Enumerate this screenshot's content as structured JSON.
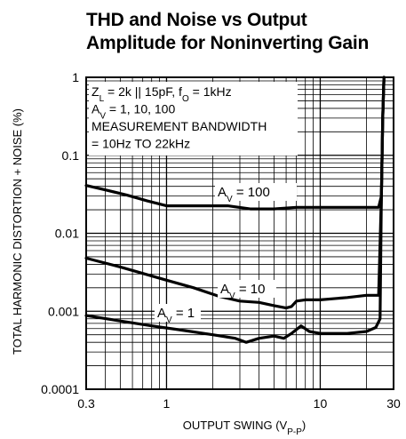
{
  "chart_data": {
    "type": "line",
    "title_lines": [
      "THD and Noise vs Output",
      "Amplitude for Noninverting Gain"
    ],
    "xlabel": {
      "main": "OUTPUT SWING (V",
      "sub": "P-P",
      "close": ")"
    },
    "ylabel": "TOTAL HARMONIC DISTORTION + NOISE (%)",
    "x_scale": "log",
    "y_scale": "log",
    "xlim": [
      0.3,
      30
    ],
    "ylim": [
      0.0001,
      1
    ],
    "grid": true,
    "x_ticks": [
      {
        "value": 0.3,
        "label": "0.3"
      },
      {
        "value": 1,
        "label": "1"
      },
      {
        "value": 10,
        "label": "10"
      },
      {
        "value": 30,
        "label": "30"
      }
    ],
    "y_ticks": [
      {
        "value": 1,
        "label": "1"
      },
      {
        "value": 0.1,
        "label": "0.1"
      },
      {
        "value": 0.01,
        "label": "0.01"
      },
      {
        "value": 0.001,
        "label": "0.001"
      },
      {
        "value": 0.0001,
        "label": "0.0001"
      }
    ],
    "conditions": [
      [
        {
          "t": "Z"
        },
        {
          "t": "L",
          "sub": true
        },
        {
          "t": " = 2k || 15pF, f"
        },
        {
          "t": "O",
          "sub": true
        },
        {
          "t": " = 1kHz"
        }
      ],
      [
        {
          "t": "A"
        },
        {
          "t": "V",
          "sub": true
        },
        {
          "t": " = 1, 10, 100"
        }
      ],
      [
        {
          "t": "MEASUREMENT BANDWIDTH"
        }
      ],
      [
        {
          "t": "= 10Hz TO 22kHz"
        }
      ]
    ],
    "series": [
      {
        "name": "AV = 100",
        "label": {
          "main": "A",
          "sub": "V",
          "rest": " = 100"
        },
        "points": [
          [
            0.3,
            0.041
          ],
          [
            0.4,
            0.036
          ],
          [
            0.55,
            0.031
          ],
          [
            0.75,
            0.026
          ],
          [
            1.0,
            0.0225
          ],
          [
            1.5,
            0.0225
          ],
          [
            2.5,
            0.0225
          ],
          [
            3.5,
            0.0205
          ],
          [
            5,
            0.0205
          ],
          [
            7,
            0.0215
          ],
          [
            10,
            0.0215
          ],
          [
            20,
            0.0215
          ],
          [
            24,
            0.0215
          ],
          [
            25,
            0.03
          ],
          [
            25.5,
            0.3
          ],
          [
            26,
            1.0
          ]
        ]
      },
      {
        "name": "AV = 10",
        "label": {
          "main": "A",
          "sub": "V",
          "rest": " = 10"
        },
        "points": [
          [
            0.3,
            0.0048
          ],
          [
            0.5,
            0.0037
          ],
          [
            1.0,
            0.0025
          ],
          [
            1.5,
            0.002
          ],
          [
            2.2,
            0.00155
          ],
          [
            3,
            0.00135
          ],
          [
            4,
            0.0013
          ],
          [
            5,
            0.00118
          ],
          [
            6,
            0.0011
          ],
          [
            6.5,
            0.00115
          ],
          [
            7,
            0.00135
          ],
          [
            8,
            0.0014
          ],
          [
            10,
            0.0014
          ],
          [
            15,
            0.0015
          ],
          [
            20,
            0.0016
          ],
          [
            24,
            0.0016
          ],
          [
            25,
            0.03
          ],
          [
            25.5,
            0.3
          ],
          [
            26,
            1.0
          ]
        ]
      },
      {
        "name": "AV = 1",
        "label": {
          "main": "A",
          "sub": "V",
          "rest": " = 1"
        },
        "points": [
          [
            0.3,
            0.00088
          ],
          [
            0.5,
            0.00075
          ],
          [
            0.8,
            0.00065
          ],
          [
            1.2,
            0.00058
          ],
          [
            2,
            0.0005
          ],
          [
            2.8,
            0.00045
          ],
          [
            3.3,
            0.0004
          ],
          [
            4,
            0.00045
          ],
          [
            5,
            0.00048
          ],
          [
            5.8,
            0.00045
          ],
          [
            6.5,
            0.00052
          ],
          [
            7.5,
            0.00065
          ],
          [
            8.5,
            0.00055
          ],
          [
            10,
            0.00052
          ],
          [
            15,
            0.00052
          ],
          [
            20,
            0.00055
          ],
          [
            23,
            0.00062
          ],
          [
            24.5,
            0.0008
          ],
          [
            25,
            0.03
          ],
          [
            25.5,
            0.3
          ],
          [
            26,
            1.0
          ]
        ]
      }
    ]
  }
}
